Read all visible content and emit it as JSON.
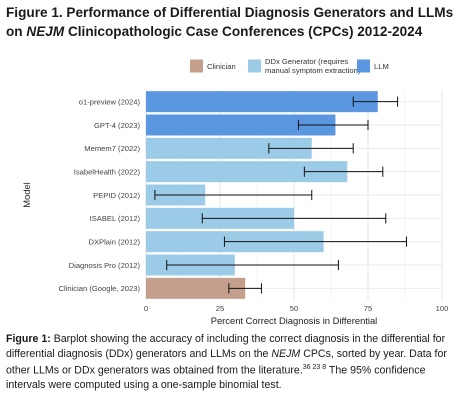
{
  "figure": {
    "title_prefix": "Figure 1. Performance of Differential Diagnosis Generators and LLMs on",
    "title_em": "NEJM",
    "title_suffix": "Clinicopathologic Case Conferences (CPCs) 2012-2024"
  },
  "caption": {
    "lead": "Figure 1:",
    "part1": "Barplot showing the accuracy of including the correct diagnosis in the differential for differential diagnosis (DDx) generators and LLMs on the",
    "em": "NEJM",
    "part2": "CPCs, sorted by year. Data for other LLMs or DDx generators was obtained from the literature.",
    "refs": "36 23 8",
    "part3": "The 95% confidence intervals were computed using a one-sample binomial test."
  },
  "colors": {
    "clinician": "#c4a08c",
    "ddx": "#9ccbe7",
    "llm": "#5b97e0"
  },
  "chart_data": {
    "type": "bar",
    "orientation": "horizontal",
    "xlabel": "Percent Correct Diagnosis in Differential",
    "ylabel": "Model",
    "xlim": [
      0,
      100
    ],
    "xticks": [
      0,
      25,
      50,
      75,
      100
    ],
    "grid": true,
    "legend_position": "top",
    "legend": [
      {
        "key": "clinician",
        "label": "Clinician"
      },
      {
        "key": "ddx",
        "label": "DDx Generator (requires\nmanual symptom extraction)"
      },
      {
        "key": "llm",
        "label": "LLM"
      }
    ],
    "bars": [
      {
        "label": "o1-preview (2024)",
        "group": "llm",
        "value": 78.3,
        "ci": [
          70.0,
          85.0
        ]
      },
      {
        "label": "GPT-4 (2023)",
        "group": "llm",
        "value": 64.0,
        "ci": [
          51.5,
          75.0
        ]
      },
      {
        "label": "Memem7 (2022)",
        "group": "ddx",
        "value": 56.0,
        "ci": [
          41.5,
          70.0
        ]
      },
      {
        "label": "IsabelHealth (2022)",
        "group": "ddx",
        "value": 68.0,
        "ci": [
          53.5,
          80.0
        ]
      },
      {
        "label": "PEPID (2012)",
        "group": "ddx",
        "value": 20.0,
        "ci": [
          3.0,
          56.0
        ]
      },
      {
        "label": "ISABEL (2012)",
        "group": "ddx",
        "value": 50.0,
        "ci": [
          19.0,
          81.0
        ]
      },
      {
        "label": "DXPlain (2012)",
        "group": "ddx",
        "value": 60.0,
        "ci": [
          26.5,
          88.0
        ]
      },
      {
        "label": "Diagnosis Pro (2012)",
        "group": "ddx",
        "value": 30.0,
        "ci": [
          7.0,
          65.0
        ]
      },
      {
        "label": "Clinician (Google, 2023)",
        "group": "clinician",
        "value": 33.5,
        "ci": [
          28.0,
          39.0
        ]
      }
    ]
  }
}
